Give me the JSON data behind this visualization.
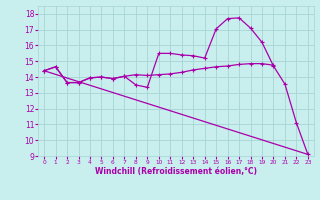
{
  "bg_color": "#c8eeee",
  "grid_color": "#a8d4d4",
  "line_color": "#aa00aa",
  "xlabel": "Windchill (Refroidissement éolien,°C)",
  "ylim": [
    9,
    18.5
  ],
  "xlim": [
    -0.5,
    23.5
  ],
  "yticks": [
    9,
    10,
    11,
    12,
    13,
    14,
    15,
    16,
    17,
    18
  ],
  "xticks": [
    0,
    1,
    2,
    3,
    4,
    5,
    6,
    7,
    8,
    9,
    10,
    11,
    12,
    13,
    14,
    15,
    16,
    17,
    18,
    19,
    20,
    21,
    22,
    23
  ],
  "line1_x": [
    0,
    1,
    2,
    3,
    4,
    5,
    6,
    7,
    8,
    9,
    10,
    11,
    12,
    13,
    14,
    15,
    16,
    17,
    18,
    19,
    20
  ],
  "line1_y": [
    14.4,
    14.65,
    13.65,
    13.65,
    13.95,
    14.0,
    13.9,
    14.05,
    14.15,
    14.1,
    14.15,
    14.2,
    14.3,
    14.45,
    14.55,
    14.65,
    14.7,
    14.8,
    14.85,
    14.85,
    14.75
  ],
  "line2_x": [
    0,
    1,
    2,
    3,
    4,
    5,
    6,
    7,
    8,
    9,
    10,
    11,
    12,
    13,
    14,
    15,
    16,
    17,
    18,
    19,
    20,
    21,
    22,
    23
  ],
  "line2_y": [
    14.4,
    14.65,
    13.65,
    13.65,
    13.95,
    14.0,
    13.9,
    14.05,
    13.5,
    13.35,
    15.5,
    15.5,
    15.4,
    15.35,
    15.2,
    17.05,
    17.7,
    17.75,
    17.1,
    16.2,
    14.7,
    13.55,
    11.1,
    9.1
  ],
  "line3_x": [
    0,
    23
  ],
  "line3_y": [
    14.4,
    9.1
  ]
}
